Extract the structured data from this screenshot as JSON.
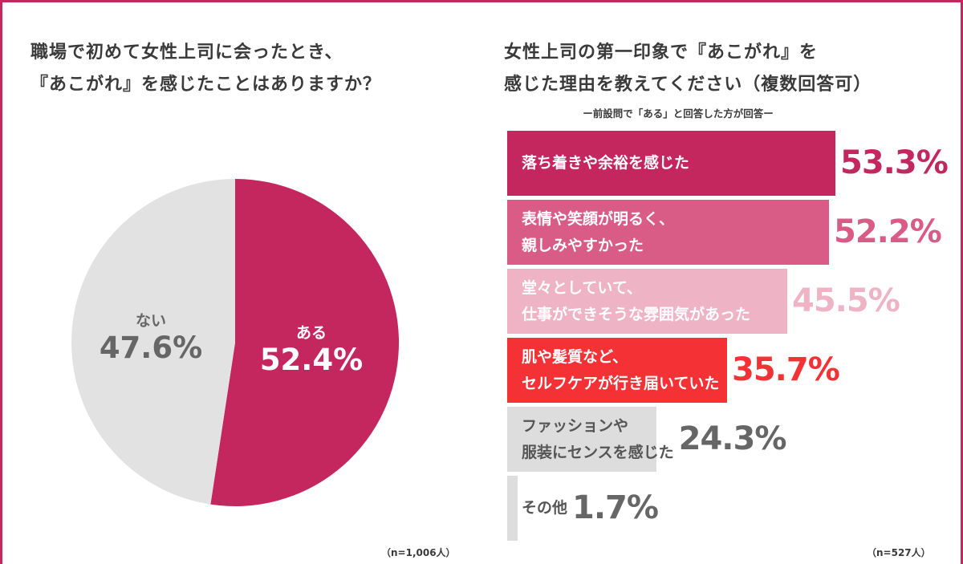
{
  "left": {
    "title_line1": "職場で初めて女性上司に会ったとき、",
    "title_line2": "『あこがれ』を感じたことはありますか？",
    "note": "（n=1,006人）"
  },
  "right": {
    "title_line1": "女性上司の第一印象で『あこがれ』を",
    "title_line2": "感じた理由を教えてください（複数回答可）",
    "subtitle": "ー前設問で「ある」と回答した方が回答ー",
    "note": "（n=527人）"
  },
  "chart_data": [
    {
      "type": "pie",
      "title": "職場で初めて女性上司に会ったとき、『あこがれ』を感じたことはありますか？",
      "categories": [
        "ある",
        "ない"
      ],
      "values": [
        52.4,
        47.6
      ],
      "value_labels": [
        "52.4%",
        "47.6%"
      ],
      "colors": [
        "#c4275e",
        "#e2e2e2"
      ],
      "label_colors": [
        "#ffffff",
        "#666666"
      ],
      "n": "n=1,006人"
    },
    {
      "type": "bar",
      "orientation": "horizontal",
      "title": "女性上司の第一印象で『あこがれ』を感じた理由を教えてください（複数回答可）",
      "categories": [
        [
          "落ち着きや余裕を感じた"
        ],
        [
          "表情や笑顔が明るく、",
          "親しみやすかった"
        ],
        [
          "堂々としていて、",
          "仕事ができそうな雰囲気があった"
        ],
        [
          "肌や髪質など、",
          "セルフケアが行き届いていた"
        ],
        [
          "ファッションや",
          "服装にセンスを感じた"
        ],
        [
          "その他"
        ]
      ],
      "values": [
        53.3,
        52.2,
        45.5,
        35.7,
        24.3,
        1.7
      ],
      "value_labels": [
        "53.3%",
        "52.2%",
        "45.5%",
        "35.7%",
        "24.3%",
        "1.7%"
      ],
      "bar_colors": [
        "#c4275e",
        "#d95c86",
        "#efb3c6",
        "#f43134",
        "#dddddd",
        "#dddddd"
      ],
      "text_colors": [
        "#ffffff",
        "#ffffff",
        "#ffffff",
        "#ffffff",
        "#555555",
        "#555555"
      ],
      "value_colors": [
        "#c4275e",
        "#d95c86",
        "#efb3c6",
        "#f43134",
        "#666666",
        "#666666"
      ],
      "xlim": [
        0,
        53.3
      ],
      "n": "n=527人"
    }
  ]
}
